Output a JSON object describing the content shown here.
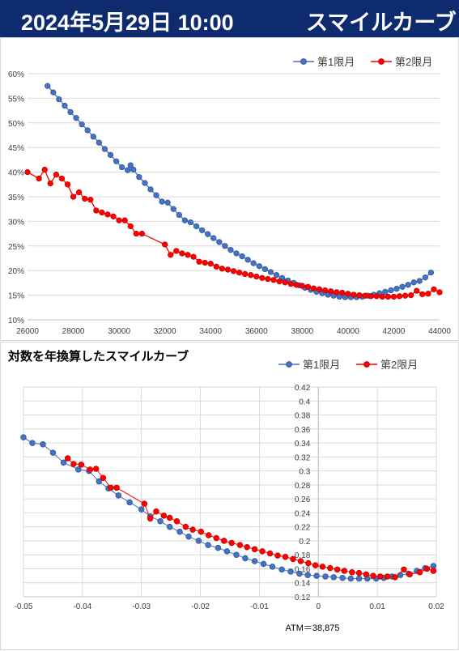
{
  "header": {
    "date": "2024年5月29日 10:00",
    "title": "スマイルカーブ"
  },
  "chart_data": [
    {
      "type": "line",
      "title": "",
      "xlabel": "",
      "ylabel": "",
      "xlim": [
        26000,
        44000
      ],
      "ylim": [
        0.1,
        0.6
      ],
      "x_ticks": [
        "26000",
        "28000",
        "30000",
        "32000",
        "34000",
        "36000",
        "38000",
        "40000",
        "42000",
        "44000"
      ],
      "y_ticks": [
        "10%",
        "15%",
        "20%",
        "25%",
        "30%",
        "35%",
        "40%",
        "45%",
        "50%",
        "55%",
        "60%"
      ],
      "grid": "horizontal",
      "legend": "top-right",
      "series": [
        {
          "name": "第1限月",
          "color": "#4472c4",
          "points": [
            [
              26875,
              0.575
            ],
            [
              27125,
              0.562
            ],
            [
              27375,
              0.548
            ],
            [
              27625,
              0.535
            ],
            [
              27875,
              0.522
            ],
            [
              28125,
              0.51
            ],
            [
              28375,
              0.497
            ],
            [
              28625,
              0.485
            ],
            [
              28875,
              0.472
            ],
            [
              29125,
              0.46
            ],
            [
              29375,
              0.447
            ],
            [
              29625,
              0.435
            ],
            [
              29875,
              0.422
            ],
            [
              30125,
              0.41
            ],
            [
              30375,
              0.404
            ],
            [
              30500,
              0.414
            ],
            [
              30625,
              0.405
            ],
            [
              30875,
              0.39
            ],
            [
              31125,
              0.378
            ],
            [
              31375,
              0.365
            ],
            [
              31625,
              0.353
            ],
            [
              31875,
              0.34
            ],
            [
              32125,
              0.338
            ],
            [
              32375,
              0.325
            ],
            [
              32625,
              0.313
            ],
            [
              32875,
              0.302
            ],
            [
              33125,
              0.298
            ],
            [
              33375,
              0.29
            ],
            [
              33625,
              0.282
            ],
            [
              33875,
              0.274
            ],
            [
              34125,
              0.266
            ],
            [
              34375,
              0.258
            ],
            [
              34625,
              0.25
            ],
            [
              34875,
              0.242
            ],
            [
              35125,
              0.235
            ],
            [
              35375,
              0.229
            ],
            [
              35625,
              0.222
            ],
            [
              35875,
              0.215
            ],
            [
              36125,
              0.209
            ],
            [
              36375,
              0.203
            ],
            [
              36625,
              0.197
            ],
            [
              36875,
              0.191
            ],
            [
              37125,
              0.185
            ],
            [
              37375,
              0.18
            ],
            [
              37625,
              0.175
            ],
            [
              37875,
              0.17
            ],
            [
              38125,
              0.165
            ],
            [
              38375,
              0.161
            ],
            [
              38625,
              0.157
            ],
            [
              38875,
              0.154
            ],
            [
              39125,
              0.151
            ],
            [
              39375,
              0.149
            ],
            [
              39625,
              0.147
            ],
            [
              39875,
              0.146
            ],
            [
              40125,
              0.146
            ],
            [
              40375,
              0.146
            ],
            [
              40625,
              0.147
            ],
            [
              40875,
              0.149
            ],
            [
              41125,
              0.151
            ],
            [
              41375,
              0.154
            ],
            [
              41625,
              0.157
            ],
            [
              41875,
              0.16
            ],
            [
              42125,
              0.163
            ],
            [
              42375,
              0.167
            ],
            [
              42625,
              0.171
            ],
            [
              42875,
              0.176
            ],
            [
              43125,
              0.179
            ],
            [
              43375,
              0.186
            ],
            [
              43625,
              0.196
            ]
          ]
        },
        {
          "name": "第2限月",
          "color": "#ff0000",
          "points": [
            [
              26000,
              0.4
            ],
            [
              26500,
              0.387
            ],
            [
              26750,
              0.405
            ],
            [
              27000,
              0.377
            ],
            [
              27250,
              0.395
            ],
            [
              27500,
              0.387
            ],
            [
              27750,
              0.375
            ],
            [
              28000,
              0.35
            ],
            [
              28250,
              0.359
            ],
            [
              28500,
              0.346
            ],
            [
              28750,
              0.344
            ],
            [
              29000,
              0.322
            ],
            [
              29250,
              0.318
            ],
            [
              29500,
              0.314
            ],
            [
              29750,
              0.31
            ],
            [
              30000,
              0.302
            ],
            [
              30250,
              0.302
            ],
            [
              30500,
              0.29
            ],
            [
              30750,
              0.275
            ],
            [
              31000,
              0.275
            ],
            [
              32000,
              0.253
            ],
            [
              32250,
              0.232
            ],
            [
              32500,
              0.24
            ],
            [
              32750,
              0.235
            ],
            [
              33000,
              0.232
            ],
            [
              33250,
              0.228
            ],
            [
              33500,
              0.218
            ],
            [
              33750,
              0.216
            ],
            [
              34000,
              0.214
            ],
            [
              34250,
              0.208
            ],
            [
              34500,
              0.204
            ],
            [
              34750,
              0.202
            ],
            [
              35000,
              0.199
            ],
            [
              35250,
              0.196
            ],
            [
              35500,
              0.193
            ],
            [
              35750,
              0.191
            ],
            [
              36000,
              0.188
            ],
            [
              36250,
              0.185
            ],
            [
              36500,
              0.183
            ],
            [
              36750,
              0.181
            ],
            [
              37000,
              0.178
            ],
            [
              37250,
              0.176
            ],
            [
              37500,
              0.173
            ],
            [
              37750,
              0.171
            ],
            [
              38000,
              0.169
            ],
            [
              38250,
              0.167
            ],
            [
              38500,
              0.164
            ],
            [
              38750,
              0.162
            ],
            [
              39000,
              0.16
            ],
            [
              39250,
              0.158
            ],
            [
              39500,
              0.156
            ],
            [
              39750,
              0.155
            ],
            [
              40000,
              0.153
            ],
            [
              40250,
              0.151
            ],
            [
              40500,
              0.15
            ],
            [
              40750,
              0.149
            ],
            [
              41000,
              0.148
            ],
            [
              41250,
              0.148
            ],
            [
              41500,
              0.147
            ],
            [
              41750,
              0.147
            ],
            [
              42000,
              0.147
            ],
            [
              42250,
              0.148
            ],
            [
              42500,
              0.149
            ],
            [
              42750,
              0.15
            ],
            [
              43000,
              0.159
            ],
            [
              43250,
              0.152
            ],
            [
              43500,
              0.153
            ],
            [
              43750,
              0.162
            ],
            [
              44000,
              0.156
            ]
          ]
        }
      ]
    },
    {
      "type": "line",
      "title": "対数を年換算したスマイルカーブ",
      "xlabel": "ATM＝38,875",
      "ylabel": "",
      "xlim": [
        -0.05,
        0.02
      ],
      "ylim": [
        0.12,
        0.42
      ],
      "x_ticks": [
        "-0.05",
        "-0.04",
        "-0.03",
        "-0.02",
        "-0.01",
        "0",
        "0.01",
        "0.02"
      ],
      "y_ticks": [
        "0.12",
        "0.14",
        "0.16",
        "0.18",
        "0.2",
        "0.22",
        "0.24",
        "0.26",
        "0.28",
        "0.3",
        "0.32",
        "0.34",
        "0.36",
        "0.38",
        "0.4",
        "0.42"
      ],
      "grid": "both",
      "legend": "top-right",
      "series": [
        {
          "name": "第1限月",
          "color": "#4472c4",
          "points": [
            [
              -0.05,
              0.348
            ],
            [
              -0.0485,
              0.34
            ],
            [
              -0.0467,
              0.338
            ],
            [
              -0.045,
              0.326
            ],
            [
              -0.0432,
              0.312
            ],
            [
              -0.0407,
              0.302
            ],
            [
              -0.0389,
              0.3
            ],
            [
              -0.0372,
              0.285
            ],
            [
              -0.0356,
              0.275
            ],
            [
              -0.0339,
              0.265
            ],
            [
              -0.032,
              0.255
            ],
            [
              -0.03,
              0.245
            ],
            [
              -0.0285,
              0.235
            ],
            [
              -0.0268,
              0.228
            ],
            [
              -0.0252,
              0.22
            ],
            [
              -0.0235,
              0.213
            ],
            [
              -0.022,
              0.206
            ],
            [
              -0.0203,
              0.2
            ],
            [
              -0.0187,
              0.194
            ],
            [
              -0.017,
              0.19
            ],
            [
              -0.0155,
              0.185
            ],
            [
              -0.0139,
              0.18
            ],
            [
              -0.0124,
              0.175
            ],
            [
              -0.0108,
              0.171
            ],
            [
              -0.0093,
              0.167
            ],
            [
              -0.0078,
              0.163
            ],
            [
              -0.0062,
              0.159
            ],
            [
              -0.0047,
              0.156
            ],
            [
              -0.0032,
              0.153
            ],
            [
              -0.0018,
              0.151
            ],
            [
              -0.0003,
              0.15
            ],
            [
              0.0012,
              0.149
            ],
            [
              0.0026,
              0.148
            ],
            [
              0.0041,
              0.147
            ],
            [
              0.0055,
              0.146
            ],
            [
              0.0069,
              0.146
            ],
            [
              0.0083,
              0.146
            ],
            [
              0.0098,
              0.146
            ],
            [
              0.0111,
              0.147
            ],
            [
              0.0125,
              0.149
            ],
            [
              0.0139,
              0.151
            ],
            [
              0.0153,
              0.153
            ],
            [
              0.0167,
              0.157
            ],
            [
              0.0181,
              0.161
            ],
            [
              0.0195,
              0.164
            ]
          ]
        },
        {
          "name": "第2限月",
          "color": "#ff0000",
          "points": [
            [
              -0.0425,
              0.318
            ],
            [
              -0.0415,
              0.31
            ],
            [
              -0.0402,
              0.309
            ],
            [
              -0.0387,
              0.302
            ],
            [
              -0.0377,
              0.303
            ],
            [
              -0.0365,
              0.29
            ],
            [
              -0.0352,
              0.276
            ],
            [
              -0.0342,
              0.276
            ],
            [
              -0.0295,
              0.253
            ],
            [
              -0.0285,
              0.232
            ],
            [
              -0.0275,
              0.242
            ],
            [
              -0.0262,
              0.236
            ],
            [
              -0.0252,
              0.233
            ],
            [
              -0.024,
              0.228
            ],
            [
              -0.0225,
              0.22
            ],
            [
              -0.0213,
              0.216
            ],
            [
              -0.0199,
              0.213
            ],
            [
              -0.0186,
              0.208
            ],
            [
              -0.0173,
              0.204
            ],
            [
              -0.016,
              0.2
            ],
            [
              -0.0147,
              0.197
            ],
            [
              -0.0133,
              0.194
            ],
            [
              -0.0121,
              0.191
            ],
            [
              -0.0108,
              0.188
            ],
            [
              -0.0095,
              0.185
            ],
            [
              -0.0082,
              0.182
            ],
            [
              -0.0069,
              0.179
            ],
            [
              -0.0056,
              0.177
            ],
            [
              -0.0043,
              0.174
            ],
            [
              -0.003,
              0.171
            ],
            [
              -0.0017,
              0.168
            ],
            [
              -0.0005,
              0.165
            ],
            [
              0.0007,
              0.163
            ],
            [
              0.002,
              0.161
            ],
            [
              0.0032,
              0.159
            ],
            [
              0.0044,
              0.157
            ],
            [
              0.0057,
              0.155
            ],
            [
              0.0069,
              0.154
            ],
            [
              0.0081,
              0.152
            ],
            [
              0.0093,
              0.15
            ],
            [
              0.0105,
              0.149
            ],
            [
              0.0117,
              0.149
            ],
            [
              0.013,
              0.148
            ],
            [
              0.0145,
              0.159
            ],
            [
              0.0155,
              0.152
            ],
            [
              0.0172,
              0.155
            ],
            [
              0.0184,
              0.16
            ],
            [
              0.0195,
              0.157
            ]
          ]
        }
      ]
    }
  ]
}
